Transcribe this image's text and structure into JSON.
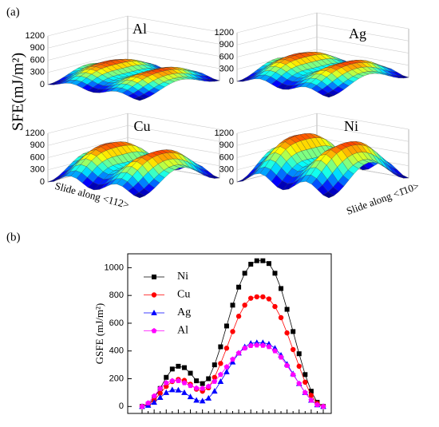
{
  "label_a": "(a)",
  "label_b": "(b)",
  "surface_zlabel": "SFE(mJ/m²)",
  "chart_data": [
    {
      "type": "surface",
      "title": "Al",
      "zlim": [
        0,
        1200
      ],
      "zticks": [
        0,
        300,
        600,
        900,
        1200
      ]
    },
    {
      "type": "surface",
      "title": "Ag",
      "zlim": [
        0,
        1200
      ],
      "zticks": [
        0,
        300,
        600,
        900,
        1200
      ]
    },
    {
      "type": "surface",
      "title": "Cu",
      "zlim": [
        0,
        1200
      ],
      "zticks": [
        0,
        300,
        600,
        900,
        1200
      ],
      "xlabel": "Slide along <112>"
    },
    {
      "type": "surface",
      "title": "Ni",
      "zlim": [
        0,
        1200
      ],
      "zticks": [
        0,
        300,
        600,
        900,
        1200
      ],
      "ylabel": "Slide along <1̄10>"
    },
    {
      "type": "line",
      "ylabel": "GSFE (mJ/m²)",
      "ylim": [
        -50,
        1100
      ],
      "yticks": [
        0,
        200,
        400,
        600,
        800,
        1000
      ],
      "categories": [
        null,
        null,
        null,
        null,
        null,
        null,
        null,
        null,
        null,
        null,
        null,
        null,
        null,
        null,
        null,
        null,
        null,
        null,
        null,
        null,
        null,
        null,
        null,
        null,
        null,
        null,
        null,
        null,
        null,
        null,
        null
      ],
      "legend": "upper left",
      "series": [
        {
          "name": "Ni",
          "color": "#000000",
          "marker": "square",
          "values": [
            0,
            15,
            60,
            130,
            210,
            270,
            290,
            280,
            240,
            185,
            165,
            200,
            300,
            430,
            580,
            730,
            860,
            960,
            1025,
            1050,
            1050,
            1030,
            960,
            850,
            700,
            540,
            380,
            230,
            110,
            30,
            0
          ]
        },
        {
          "name": "Cu",
          "color": "#ff0000",
          "marker": "circle",
          "values": [
            0,
            12,
            45,
            95,
            145,
            180,
            195,
            188,
            160,
            125,
            110,
            135,
            210,
            310,
            420,
            540,
            650,
            730,
            780,
            790,
            790,
            775,
            720,
            640,
            530,
            410,
            290,
            175,
            80,
            22,
            0
          ]
        },
        {
          "name": "Ag",
          "color": "#0000ff",
          "marker": "triangle",
          "values": [
            0,
            8,
            30,
            65,
            100,
            120,
            118,
            100,
            70,
            45,
            40,
            60,
            110,
            180,
            250,
            320,
            385,
            430,
            455,
            460,
            460,
            450,
            420,
            370,
            305,
            235,
            165,
            100,
            45,
            12,
            0
          ]
        },
        {
          "name": "Al",
          "color": "#ff00ff",
          "marker": "pentagon",
          "values": [
            0,
            25,
            75,
            130,
            170,
            185,
            185,
            170,
            150,
            132,
            130,
            145,
            180,
            230,
            285,
            340,
            385,
            420,
            438,
            442,
            440,
            430,
            400,
            355,
            295,
            230,
            165,
            100,
            45,
            12,
            0
          ]
        }
      ]
    }
  ]
}
